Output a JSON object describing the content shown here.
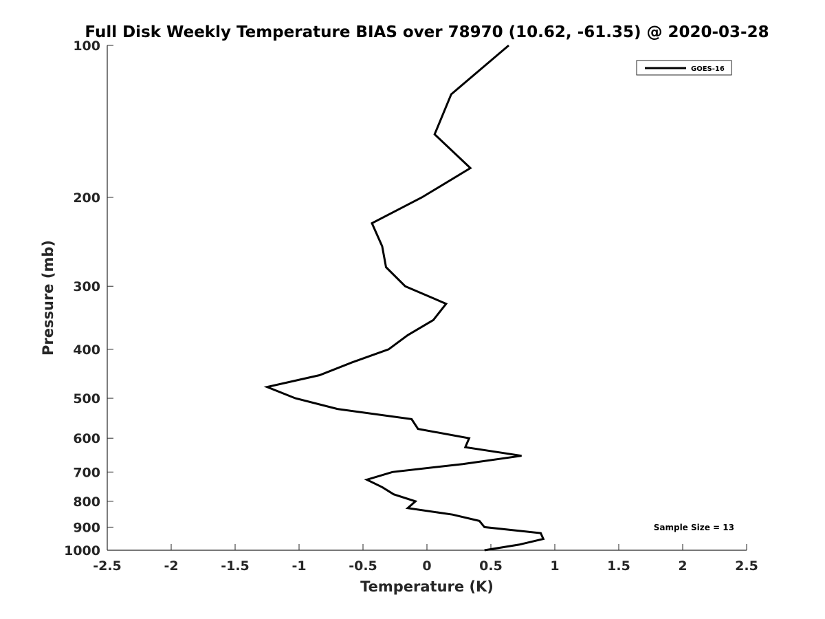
{
  "chart_data": {
    "type": "line",
    "title": "Full Disk Weekly Temperature BIAS over 78970 (10.62, -61.35) @ 2020-03-28",
    "xlabel": "Temperature (K)",
    "ylabel": "Pressure (mb)",
    "xlim": [
      -2.5,
      2.5
    ],
    "ylim": [
      100,
      1000
    ],
    "yscale": "log",
    "y_reversed": true,
    "x_ticks": [
      -2.5,
      -2,
      -1.5,
      -1,
      -0.5,
      0,
      0.5,
      1,
      1.5,
      2,
      2.5
    ],
    "x_tick_labels": [
      "-2.5",
      "-2",
      "-1.5",
      "-1",
      "-0.5",
      "0",
      "0.5",
      "1",
      "1.5",
      "2",
      "2.5"
    ],
    "y_ticks": [
      100,
      200,
      300,
      400,
      500,
      600,
      700,
      800,
      900,
      1000
    ],
    "y_tick_labels": [
      "100",
      "200",
      "300",
      "400",
      "500",
      "600",
      "700",
      "800",
      "900",
      "1000"
    ],
    "grid": false,
    "legend_position": "top-right",
    "annotation": "Sample Size = 13",
    "series": [
      {
        "name": "GOES-16",
        "color": "#000000",
        "points": [
          {
            "t": 0.64,
            "p": 100
          },
          {
            "t": 0.19,
            "p": 125
          },
          {
            "t": 0.06,
            "p": 150
          },
          {
            "t": 0.34,
            "p": 175
          },
          {
            "t": -0.04,
            "p": 200
          },
          {
            "t": -0.43,
            "p": 225
          },
          {
            "t": -0.35,
            "p": 250
          },
          {
            "t": -0.32,
            "p": 275
          },
          {
            "t": -0.17,
            "p": 300
          },
          {
            "t": 0.15,
            "p": 325
          },
          {
            "t": 0.05,
            "p": 350
          },
          {
            "t": -0.15,
            "p": 375
          },
          {
            "t": -0.3,
            "p": 400
          },
          {
            "t": -0.59,
            "p": 425
          },
          {
            "t": -0.84,
            "p": 450
          },
          {
            "t": -1.25,
            "p": 475
          },
          {
            "t": -1.03,
            "p": 500
          },
          {
            "t": -0.7,
            "p": 525
          },
          {
            "t": -0.12,
            "p": 550
          },
          {
            "t": -0.07,
            "p": 575
          },
          {
            "t": 0.33,
            "p": 600
          },
          {
            "t": 0.3,
            "p": 625
          },
          {
            "t": 0.74,
            "p": 650
          },
          {
            "t": 0.28,
            "p": 675
          },
          {
            "t": -0.27,
            "p": 700
          },
          {
            "t": -0.47,
            "p": 725
          },
          {
            "t": -0.35,
            "p": 750
          },
          {
            "t": -0.26,
            "p": 775
          },
          {
            "t": -0.09,
            "p": 800
          },
          {
            "t": -0.15,
            "p": 825
          },
          {
            "t": 0.2,
            "p": 850
          },
          {
            "t": 0.41,
            "p": 875
          },
          {
            "t": 0.45,
            "p": 900
          },
          {
            "t": 0.89,
            "p": 925
          },
          {
            "t": 0.91,
            "p": 950
          },
          {
            "t": 0.72,
            "p": 975
          },
          {
            "t": 0.45,
            "p": 1000
          }
        ]
      }
    ]
  }
}
